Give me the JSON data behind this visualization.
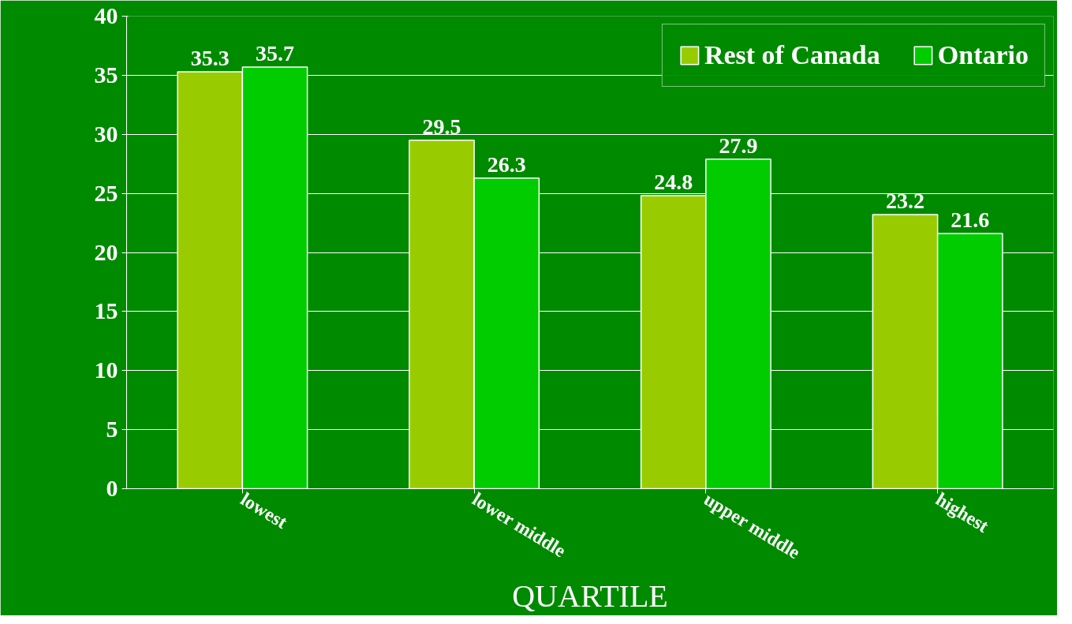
{
  "chart_data": {
    "type": "bar",
    "categories": [
      "lowest",
      "lower middle",
      "upper middle",
      "highest"
    ],
    "series": [
      {
        "name": "Rest of Canada",
        "color": "#99cc00",
        "values": [
          35.3,
          29.5,
          24.8,
          23.2
        ]
      },
      {
        "name": "Ontario",
        "color": "#00cc00",
        "values": [
          35.7,
          26.3,
          27.9,
          21.6
        ]
      }
    ],
    "xlabel": "QUARTILE",
    "ylim": [
      0,
      40
    ],
    "yticks": [
      0,
      5,
      10,
      15,
      20,
      25,
      30,
      35,
      40
    ],
    "grid": "y",
    "legend": "top right",
    "data_labels": true
  }
}
